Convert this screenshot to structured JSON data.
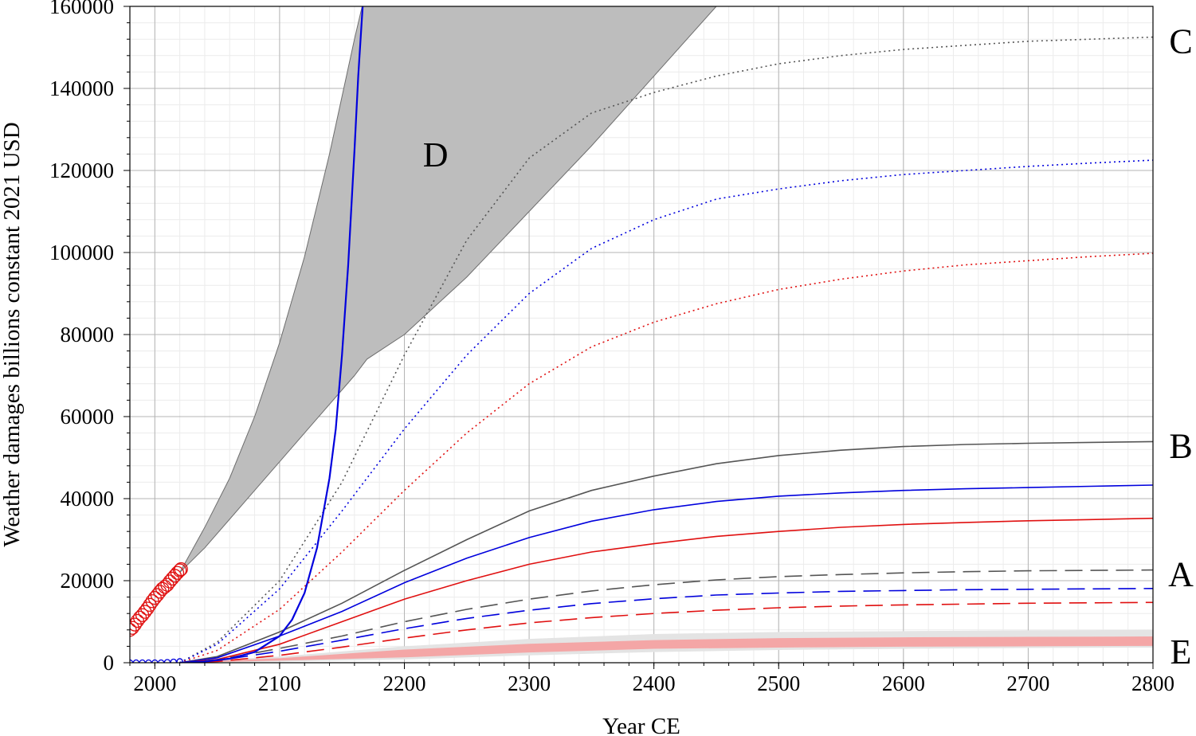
{
  "chart_data": {
    "type": "line",
    "title": "",
    "xlabel": "Year CE",
    "ylabel": "Weather damages billions constant 2021 USD",
    "xlim": [
      1980,
      2800
    ],
    "ylim": [
      0,
      160000
    ],
    "x_ticks": [
      2000,
      2100,
      2200,
      2300,
      2400,
      2500,
      2600,
      2700,
      2800
    ],
    "y_ticks": [
      0,
      20000,
      40000,
      60000,
      80000,
      100000,
      120000,
      140000,
      160000
    ],
    "grid": true,
    "minor_grid": true,
    "legend": "none",
    "colors": {
      "gray": "#555555",
      "blue": "#0000dd",
      "red": "#e01010",
      "band_gray": "#bdbdbd",
      "band_red": "#f4a6a6",
      "band_light": "#e4e4e4"
    },
    "observed_points": {
      "color": "#e01010",
      "x": [
        1980,
        1982,
        1984,
        1986,
        1988,
        1990,
        1992,
        1994,
        1996,
        1998,
        2000,
        2002,
        2004,
        2006,
        2008,
        2010,
        2012,
        2014,
        2016,
        2018,
        2020,
        2021
      ],
      "y": [
        8000,
        8500,
        9300,
        10200,
        11000,
        11600,
        12400,
        13200,
        14100,
        15000,
        15800,
        16500,
        17300,
        18000,
        18500,
        19000,
        19800,
        20500,
        21200,
        21900,
        22500,
        22800
      ]
    },
    "model_points": {
      "color": "#0000dd",
      "x": [
        1980,
        1985,
        1990,
        1995,
        2000,
        2005,
        2010,
        2015,
        2020
      ],
      "y": [
        0,
        0,
        0,
        0,
        0,
        0,
        100,
        200,
        300
      ]
    },
    "bands": [
      {
        "name": "D",
        "color": "#bdbdbd",
        "x": [
          2020,
          2040,
          2060,
          2080,
          2100,
          2120,
          2140,
          2160,
          2170
        ],
        "upper": [
          22000,
          33000,
          45000,
          60000,
          78000,
          99000,
          124000,
          152000,
          165000
        ],
        "lower": [
          22000,
          28000,
          35000,
          42000,
          49000,
          56000,
          63000,
          70000,
          74000
        ],
        "lower_ext_x": [
          2170,
          2200,
          2250,
          2300,
          2350,
          2400,
          2450
        ],
        "lower_ext_y": [
          74000,
          80000,
          94000,
          110000,
          126000,
          143000,
          160000
        ]
      },
      {
        "name": "E",
        "color": "#e4e4e4",
        "x": [
          2020,
          2100,
          2200,
          2300,
          2400,
          2500,
          2600,
          2700,
          2800
        ],
        "upper": [
          200,
          1500,
          4000,
          5800,
          7000,
          7500,
          7700,
          7900,
          8000
        ],
        "lower": [
          0,
          300,
          800,
          1800,
          2600,
          3100,
          3400,
          3600,
          3700
        ]
      },
      {
        "name": "E-red",
        "color": "#f4a6a6",
        "x": [
          2020,
          2100,
          2200,
          2300,
          2400,
          2500,
          2600,
          2700,
          2800
        ],
        "upper": [
          100,
          1100,
          3200,
          4600,
          5500,
          6000,
          6200,
          6300,
          6400
        ],
        "lower": [
          0,
          500,
          1300,
          2500,
          3400,
          3700,
          3900,
          4000,
          4100
        ]
      }
    ],
    "series": [
      {
        "group": "C",
        "color": "#555555",
        "style": "dotted",
        "x": [
          2020,
          2050,
          2100,
          2150,
          2200,
          2250,
          2300,
          2350,
          2400,
          2450,
          2500,
          2550,
          2600,
          2650,
          2700,
          2750,
          2800
        ],
        "y": [
          0,
          5000,
          20000,
          44000,
          75000,
          103000,
          123000,
          134000,
          139000,
          143000,
          146000,
          148000,
          149500,
          150500,
          151500,
          152000,
          152500
        ]
      },
      {
        "group": "C",
        "color": "#0000dd",
        "style": "dotted",
        "x": [
          2020,
          2050,
          2100,
          2150,
          2200,
          2250,
          2300,
          2350,
          2400,
          2450,
          2500,
          2550,
          2600,
          2650,
          2700,
          2750,
          2800
        ],
        "y": [
          0,
          4500,
          18000,
          37000,
          57000,
          75000,
          90000,
          101000,
          108000,
          113000,
          115500,
          117500,
          119000,
          120000,
          121000,
          121800,
          122500
        ]
      },
      {
        "group": "C",
        "color": "#e01010",
        "style": "dotted",
        "x": [
          2020,
          2050,
          2100,
          2150,
          2200,
          2250,
          2300,
          2350,
          2400,
          2450,
          2500,
          2550,
          2600,
          2650,
          2700,
          2750,
          2800
        ],
        "y": [
          0,
          3000,
          13000,
          27000,
          42000,
          56000,
          68000,
          77000,
          83000,
          87500,
          91000,
          93500,
          95500,
          97000,
          98000,
          99000,
          99800
        ]
      },
      {
        "group": "B",
        "color": "#555555",
        "style": "solid",
        "x": [
          2020,
          2050,
          2100,
          2150,
          2200,
          2250,
          2300,
          2350,
          2400,
          2450,
          2500,
          2550,
          2600,
          2650,
          2700,
          2750,
          2800
        ],
        "y": [
          0,
          1500,
          7500,
          14500,
          22500,
          30000,
          37000,
          42000,
          45500,
          48500,
          50500,
          51800,
          52700,
          53200,
          53500,
          53700,
          53900
        ]
      },
      {
        "group": "B",
        "color": "#0000dd",
        "style": "solid",
        "x": [
          2020,
          2050,
          2100,
          2150,
          2200,
          2250,
          2300,
          2350,
          2400,
          2450,
          2500,
          2550,
          2600,
          2650,
          2700,
          2750,
          2800
        ],
        "y": [
          0,
          1200,
          6500,
          12500,
          19500,
          25500,
          30500,
          34500,
          37300,
          39300,
          40600,
          41400,
          42000,
          42400,
          42700,
          43000,
          43300
        ]
      },
      {
        "group": "B",
        "color": "#e01010",
        "style": "solid",
        "x": [
          2020,
          2050,
          2100,
          2150,
          2200,
          2250,
          2300,
          2350,
          2400,
          2450,
          2500,
          2550,
          2600,
          2650,
          2700,
          2750,
          2800
        ],
        "y": [
          0,
          800,
          4500,
          10000,
          15500,
          20000,
          24000,
          27000,
          29000,
          30800,
          32000,
          33000,
          33700,
          34200,
          34600,
          34900,
          35200
        ]
      },
      {
        "group": "A",
        "color": "#555555",
        "style": "dashed",
        "x": [
          2020,
          2050,
          2100,
          2150,
          2200,
          2250,
          2300,
          2350,
          2400,
          2450,
          2500,
          2550,
          2600,
          2650,
          2700,
          2750,
          2800
        ],
        "y": [
          0,
          700,
          3500,
          6500,
          10000,
          13000,
          15500,
          17500,
          19000,
          20200,
          21000,
          21500,
          21900,
          22200,
          22400,
          22500,
          22600
        ]
      },
      {
        "group": "A",
        "color": "#0000dd",
        "style": "dashed",
        "x": [
          2020,
          2050,
          2100,
          2150,
          2200,
          2250,
          2300,
          2350,
          2400,
          2450,
          2500,
          2550,
          2600,
          2650,
          2700,
          2750,
          2800
        ],
        "y": [
          0,
          500,
          2800,
          5500,
          8300,
          10800,
          12800,
          14400,
          15600,
          16500,
          17000,
          17400,
          17600,
          17800,
          17900,
          18000,
          18100
        ]
      },
      {
        "group": "A",
        "color": "#e01010",
        "style": "dashed",
        "x": [
          2020,
          2050,
          2100,
          2150,
          2200,
          2250,
          2300,
          2350,
          2400,
          2450,
          2500,
          2550,
          2600,
          2650,
          2700,
          2750,
          2800
        ],
        "y": [
          0,
          300,
          1800,
          3800,
          6000,
          8000,
          9700,
          11000,
          12000,
          12800,
          13400,
          13800,
          14100,
          14300,
          14500,
          14600,
          14700
        ]
      },
      {
        "group": "fast",
        "color": "#0000dd",
        "style": "solid",
        "x": [
          2020,
          2040,
          2060,
          2080,
          2100,
          2110,
          2120,
          2130,
          2140,
          2145,
          2150,
          2155,
          2160,
          2163,
          2167
        ],
        "y": [
          0,
          300,
          1000,
          2600,
          6500,
          10500,
          17000,
          28000,
          45000,
          57000,
          75000,
          97000,
          125000,
          143000,
          162000
        ]
      }
    ],
    "curve_labels": [
      {
        "text": "D",
        "x": 2225,
        "y": 121000
      },
      {
        "text": "C",
        "group": "C"
      },
      {
        "text": "B",
        "group": "B"
      },
      {
        "text": "A",
        "group": "A"
      },
      {
        "text": "E",
        "group": "E"
      }
    ]
  }
}
